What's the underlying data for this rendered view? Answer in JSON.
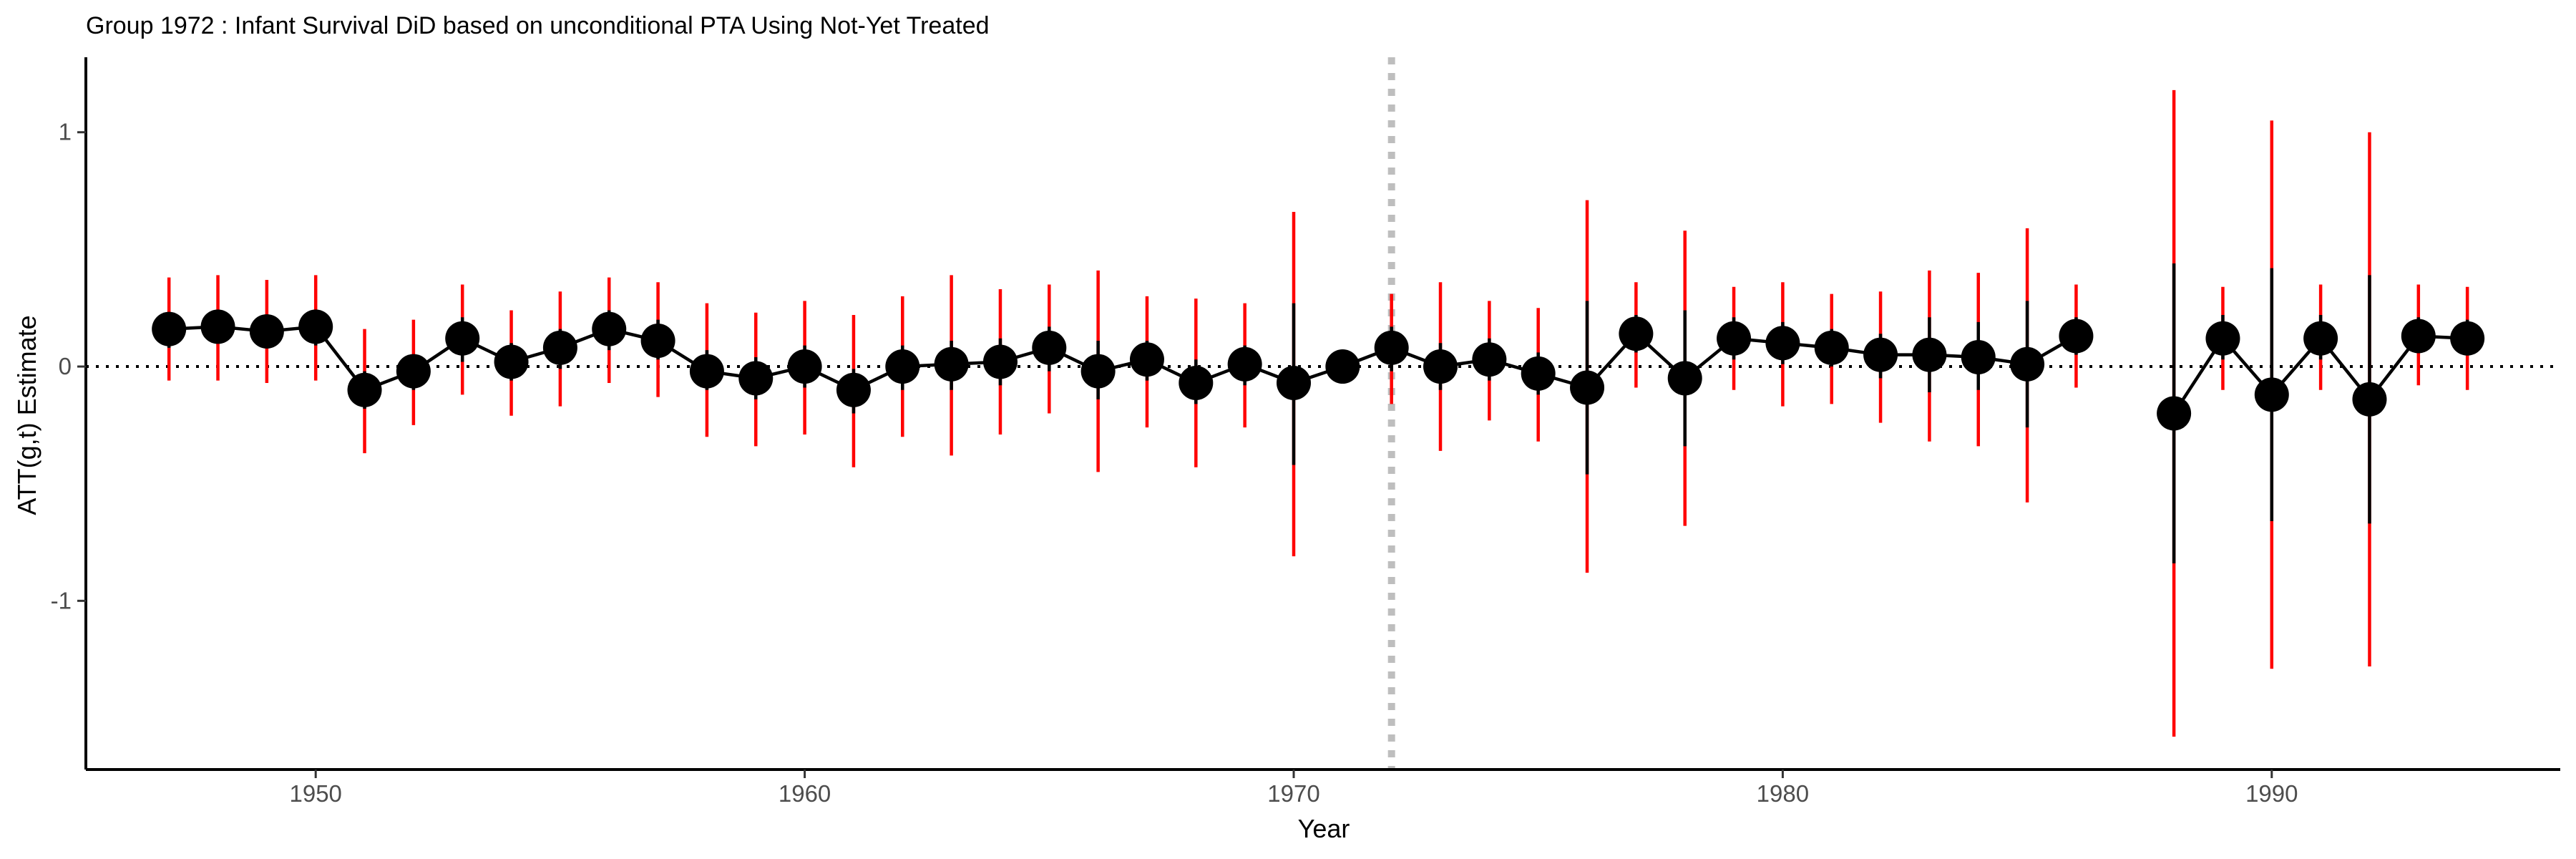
{
  "chart_data": {
    "type": "scatter",
    "title": "Group 1972 : Infant Survival DiD based on unconditional PTA Using Not-Yet Treated",
    "xlabel": "Year",
    "ylabel": "ATT(g,t) Estimate",
    "xlim": [
      1945.3,
      1995.9
    ],
    "ylim": [
      -1.72,
      1.32
    ],
    "xticks": [
      1950,
      1960,
      1970,
      1980,
      1990
    ],
    "yticks": [
      -1,
      0,
      1
    ],
    "xtick_labels": [
      "1950",
      "1960",
      "1970",
      "1980",
      "1990"
    ],
    "ytick_labels": [
      "-1",
      "0",
      "1"
    ],
    "reference_lines": {
      "horizontal_y": 0,
      "vertical_x": 1972
    },
    "grid": false,
    "legend": "none",
    "colors": {
      "point": "#000000",
      "line": "#000000",
      "pointwise_ci": "#000000",
      "simultaneous_ci": "#ff0000",
      "treatment_line": "#bebebe"
    },
    "series": [
      {
        "points": [
          {
            "x": 1947,
            "y": 0.16,
            "ci": [
              0.08,
              0.23
            ],
            "band": [
              -0.06,
              0.38
            ]
          },
          {
            "x": 1948,
            "y": 0.17,
            "ci": [
              0.1,
              0.24
            ],
            "band": [
              -0.06,
              0.39
            ]
          },
          {
            "x": 1949,
            "y": 0.15,
            "ci": [
              0.08,
              0.22
            ],
            "band": [
              -0.07,
              0.37
            ]
          },
          {
            "x": 1950,
            "y": 0.17,
            "ci": [
              0.09,
              0.24
            ],
            "band": [
              -0.06,
              0.39
            ]
          },
          {
            "x": 1951,
            "y": -0.1,
            "ci": [
              -0.18,
              -0.02
            ],
            "band": [
              -0.37,
              0.16
            ]
          },
          {
            "x": 1952,
            "y": -0.02,
            "ci": [
              -0.1,
              0.05
            ],
            "band": [
              -0.25,
              0.2
            ]
          },
          {
            "x": 1953,
            "y": 0.12,
            "ci": [
              0.02,
              0.21
            ],
            "band": [
              -0.12,
              0.35
            ]
          },
          {
            "x": 1954,
            "y": 0.02,
            "ci": [
              -0.06,
              0.1
            ],
            "band": [
              -0.21,
              0.24
            ]
          },
          {
            "x": 1955,
            "y": 0.08,
            "ci": [
              -0.01,
              0.16
            ],
            "band": [
              -0.17,
              0.32
            ]
          },
          {
            "x": 1956,
            "y": 0.16,
            "ci": [
              0.07,
              0.24
            ],
            "band": [
              -0.07,
              0.38
            ]
          },
          {
            "x": 1957,
            "y": 0.11,
            "ci": [
              0.03,
              0.2
            ],
            "band": [
              -0.13,
              0.36
            ]
          },
          {
            "x": 1958,
            "y": -0.02,
            "ci": [
              -0.1,
              0.07
            ],
            "band": [
              -0.3,
              0.27
            ]
          },
          {
            "x": 1959,
            "y": -0.05,
            "ci": [
              -0.14,
              0.04
            ],
            "band": [
              -0.34,
              0.23
            ]
          },
          {
            "x": 1960,
            "y": 0.0,
            "ci": [
              -0.09,
              0.09
            ],
            "band": [
              -0.29,
              0.28
            ]
          },
          {
            "x": 1961,
            "y": -0.1,
            "ci": [
              -0.2,
              -0.01
            ],
            "band": [
              -0.43,
              0.22
            ]
          },
          {
            "x": 1962,
            "y": 0.0,
            "ci": [
              -0.1,
              0.09
            ],
            "band": [
              -0.3,
              0.3
            ]
          },
          {
            "x": 1963,
            "y": 0.01,
            "ci": [
              -0.1,
              0.11
            ],
            "band": [
              -0.38,
              0.39
            ]
          },
          {
            "x": 1964,
            "y": 0.02,
            "ci": [
              -0.08,
              0.12
            ],
            "band": [
              -0.29,
              0.33
            ]
          },
          {
            "x": 1965,
            "y": 0.08,
            "ci": [
              -0.02,
              0.17
            ],
            "band": [
              -0.2,
              0.35
            ]
          },
          {
            "x": 1966,
            "y": -0.02,
            "ci": [
              -0.14,
              0.11
            ],
            "band": [
              -0.45,
              0.41
            ]
          },
          {
            "x": 1967,
            "y": 0.03,
            "ci": [
              -0.06,
              0.11
            ],
            "band": [
              -0.26,
              0.3
            ]
          },
          {
            "x": 1968,
            "y": -0.07,
            "ci": [
              -0.16,
              0.03
            ],
            "band": [
              -0.43,
              0.29
            ]
          },
          {
            "x": 1969,
            "y": 0.01,
            "ci": [
              -0.08,
              0.09
            ],
            "band": [
              -0.26,
              0.27
            ]
          },
          {
            "x": 1970,
            "y": -0.07,
            "ci": [
              -0.42,
              0.27
            ],
            "band": [
              -0.81,
              0.66
            ]
          },
          {
            "x": 1971,
            "y": 0.0,
            "ci": [
              0.0,
              0.0
            ],
            "band": [
              0.0,
              0.0
            ]
          },
          {
            "x": 1972,
            "y": 0.08,
            "ci": [
              -0.02,
              0.17
            ],
            "band": [
              -0.16,
              0.31
            ]
          },
          {
            "x": 1973,
            "y": 0.0,
            "ci": [
              -0.1,
              0.1
            ],
            "band": [
              -0.36,
              0.36
            ]
          },
          {
            "x": 1974,
            "y": 0.03,
            "ci": [
              -0.06,
              0.12
            ],
            "band": [
              -0.23,
              0.28
            ]
          },
          {
            "x": 1975,
            "y": -0.03,
            "ci": [
              -0.12,
              0.06
            ],
            "band": [
              -0.32,
              0.25
            ]
          },
          {
            "x": 1976,
            "y": -0.09,
            "ci": [
              -0.46,
              0.28
            ],
            "band": [
              -0.88,
              0.71
            ]
          },
          {
            "x": 1977,
            "y": 0.14,
            "ci": [
              0.06,
              0.22
            ],
            "band": [
              -0.09,
              0.36
            ]
          },
          {
            "x": 1978,
            "y": -0.05,
            "ci": [
              -0.34,
              0.24
            ],
            "band": [
              -0.68,
              0.58
            ]
          },
          {
            "x": 1979,
            "y": 0.12,
            "ci": [
              0.03,
              0.21
            ],
            "band": [
              -0.1,
              0.34
            ]
          },
          {
            "x": 1980,
            "y": 0.1,
            "ci": [
              0.01,
              0.19
            ],
            "band": [
              -0.17,
              0.36
            ]
          },
          {
            "x": 1981,
            "y": 0.08,
            "ci": [
              0.0,
              0.16
            ],
            "band": [
              -0.16,
              0.31
            ]
          },
          {
            "x": 1982,
            "y": 0.05,
            "ci": [
              -0.05,
              0.14
            ],
            "band": [
              -0.24,
              0.32
            ]
          },
          {
            "x": 1983,
            "y": 0.05,
            "ci": [
              -0.11,
              0.21
            ],
            "band": [
              -0.32,
              0.41
            ]
          },
          {
            "x": 1984,
            "y": 0.04,
            "ci": [
              -0.1,
              0.19
            ],
            "band": [
              -0.34,
              0.4
            ]
          },
          {
            "x": 1985,
            "y": 0.01,
            "ci": [
              -0.26,
              0.28
            ],
            "band": [
              -0.58,
              0.59
            ]
          },
          {
            "x": 1986,
            "y": 0.13,
            "ci": [
              0.05,
              0.21
            ],
            "band": [
              -0.09,
              0.35
            ]
          },
          {
            "x": 1988,
            "y": -0.2,
            "ci": [
              -0.84,
              0.44
            ],
            "band": [
              -1.58,
              1.18
            ]
          },
          {
            "x": 1989,
            "y": 0.12,
            "ci": [
              0.03,
              0.22
            ],
            "band": [
              -0.1,
              0.34
            ]
          },
          {
            "x": 1990,
            "y": -0.12,
            "ci": [
              -0.66,
              0.42
            ],
            "band": [
              -1.29,
              1.05
            ]
          },
          {
            "x": 1991,
            "y": 0.12,
            "ci": [
              0.03,
              0.22
            ],
            "band": [
              -0.1,
              0.35
            ]
          },
          {
            "x": 1992,
            "y": -0.14,
            "ci": [
              -0.67,
              0.39
            ],
            "band": [
              -1.28,
              1.0
            ]
          },
          {
            "x": 1993,
            "y": 0.13,
            "ci": [
              0.06,
              0.21
            ],
            "band": [
              -0.08,
              0.35
            ]
          },
          {
            "x": 1994,
            "y": 0.12,
            "ci": [
              0.05,
              0.2
            ],
            "band": [
              -0.1,
              0.34
            ]
          }
        ]
      }
    ]
  }
}
